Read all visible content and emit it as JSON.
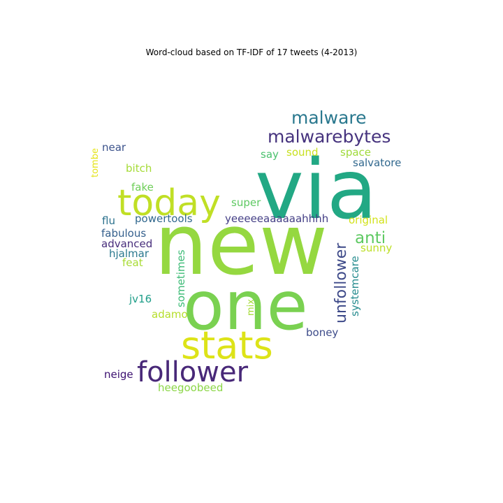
{
  "figure": {
    "title": "Word-cloud based on TF-IDF of 17 tweets (4-2013)"
  },
  "words": [
    {
      "text": "new",
      "color": "#95d840"
    },
    {
      "text": "via",
      "color": "#22a884"
    },
    {
      "text": "one",
      "color": "#7ad151"
    },
    {
      "text": "stats",
      "color": "#dde318"
    },
    {
      "text": "today",
      "color": "#c0df25"
    },
    {
      "text": "follower",
      "color": "#482878"
    },
    {
      "text": "malware",
      "color": "#2a788e"
    },
    {
      "text": "malwarebytes",
      "color": "#46337e"
    },
    {
      "text": "unfollower",
      "color": "#3e4a89"
    },
    {
      "text": "anti",
      "color": "#5ec962"
    },
    {
      "text": "yeeeeeaaaaaahhhh",
      "color": "#433e85"
    },
    {
      "text": "near",
      "color": "#3b528b"
    },
    {
      "text": "tombe",
      "color": "#e5e419"
    },
    {
      "text": "say",
      "color": "#4ac16d"
    },
    {
      "text": "sound",
      "color": "#c8e020"
    },
    {
      "text": "space",
      "color": "#9fda3a"
    },
    {
      "text": "salvatore",
      "color": "#31688e"
    },
    {
      "text": "bitch",
      "color": "#a5db36"
    },
    {
      "text": "fake",
      "color": "#6ece58"
    },
    {
      "text": "super",
      "color": "#5ec962"
    },
    {
      "text": "flu",
      "color": "#2c728e"
    },
    {
      "text": "powertools",
      "color": "#31688e"
    },
    {
      "text": "original",
      "color": "#d2e21b"
    },
    {
      "text": "fabulous",
      "color": "#35608d"
    },
    {
      "text": "sunny",
      "color": "#bddf26"
    },
    {
      "text": "advanced",
      "color": "#472d7b"
    },
    {
      "text": "hjalmar",
      "color": "#2a788e"
    },
    {
      "text": "feat",
      "color": "#a8db34"
    },
    {
      "text": "sometimes",
      "color": "#3bbb75"
    },
    {
      "text": "systemcare",
      "color": "#238a8d"
    },
    {
      "text": "jv16",
      "color": "#1f9e89"
    },
    {
      "text": "mix",
      "color": "#a5db36"
    },
    {
      "text": "adamo",
      "color": "#b5de2b"
    },
    {
      "text": "boney",
      "color": "#3e4c8a"
    },
    {
      "text": "neige",
      "color": "#3b0f70"
    },
    {
      "text": "heegoobeed",
      "color": "#8bd646"
    }
  ]
}
